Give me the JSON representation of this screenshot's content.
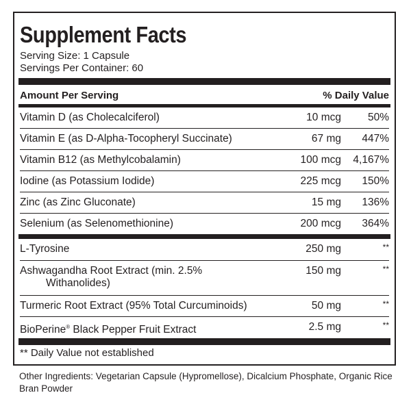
{
  "title": "Supplement Facts",
  "serving_size": "Serving Size: 1 Capsule",
  "servings_per_container": "Servings Per Container: 60",
  "header": {
    "amount": "Amount Per Serving",
    "daily_value": "% Daily Value"
  },
  "group1": [
    {
      "name": "Vitamin D (as Cholecalciferol)",
      "amount": "10 mcg",
      "dv": "50%"
    },
    {
      "name": "Vitamin E (as D-Alpha-Tocopheryl Succinate)",
      "amount": "67 mg",
      "dv": "447%"
    },
    {
      "name": "Vitamin B12 (as Methylcobalamin)",
      "amount": "100 mcg",
      "dv": "4,167%"
    },
    {
      "name": "Iodine (as Potassium Iodide)",
      "amount": "225 mcg",
      "dv": "150%"
    },
    {
      "name": "Zinc (as Zinc Gluconate)",
      "amount": "15 mg",
      "dv": "136%"
    },
    {
      "name": "Selenium (as Selenomethionine)",
      "amount": "200 mcg",
      "dv": "364%"
    }
  ],
  "group2": [
    {
      "name": "L-Tyrosine",
      "amount": "250 mg",
      "dv": "**"
    },
    {
      "name_line1": "Ashwagandha Root Extract (min. 2.5%",
      "name_line2": "Withanolides)",
      "amount": "150 mg",
      "dv": "**"
    },
    {
      "name": "Turmeric Root Extract (95% Total Curcuminoids)",
      "amount": "50 mg",
      "dv": "**"
    },
    {
      "name_pre": "BioPerine",
      "name_reg": "®",
      "name_post": " Black Pepper Fruit Extract",
      "amount": "2.5 mg",
      "dv": "**"
    }
  ],
  "footnote": "** Daily Value not established",
  "other_ingredients": "Other Ingredients: Vegetarian Capsule (Hypromellose), Dicalcium Phosphate, Organic Rice Bran Powder"
}
